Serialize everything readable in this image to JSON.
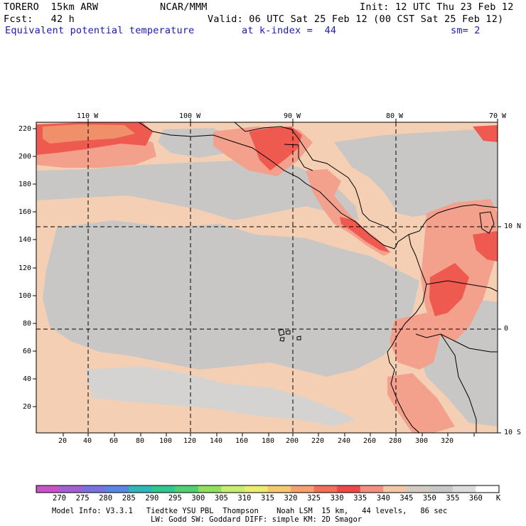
{
  "header": {
    "model": "TORERO  15km ARW",
    "center": "NCAR/MMM",
    "init": "Init: 12 UTC Thu 23 Feb 12",
    "fcst": "Fcst:   42 h",
    "valid": "Valid: 06 UTC Sat 25 Feb 12 (00 CST Sat 25 Feb 12)",
    "field": "Equivalent potential temperature",
    "level": "at k-index =  44",
    "smooth": "sm= 2"
  },
  "axes": {
    "top_labels": [
      "110 W",
      "100 W",
      "90 W",
      "80 W",
      "70 W"
    ],
    "left_labels": [
      "220",
      "200",
      "180",
      "160",
      "140",
      "120",
      "100",
      "80",
      "60",
      "40",
      "20"
    ],
    "bottom_labels": [
      "20",
      "40",
      "60",
      "80",
      "100",
      "120",
      "140",
      "160",
      "180",
      "200",
      "220",
      "240",
      "260",
      "280",
      "300",
      "320"
    ],
    "right_labels": [
      "10 N",
      "0",
      "10 S"
    ]
  },
  "colorbar": {
    "levels": [
      "270",
      "275",
      "280",
      "285",
      "290",
      "295",
      "300",
      "305",
      "310",
      "315",
      "320",
      "325",
      "330",
      "335",
      "340",
      "345",
      "350",
      "355",
      "360"
    ],
    "unit": "K",
    "colors": [
      "#c853c8",
      "#a060d0",
      "#7a72e0",
      "#5a86e6",
      "#30b8b8",
      "#30c890",
      "#50d070",
      "#90e060",
      "#c8ec70",
      "#ecec70",
      "#f6c870",
      "#f5a070",
      "#f27058",
      "#ee4848",
      "#f49080",
      "#f4c6a8",
      "#d4cbc3",
      "#c8c8c8",
      "#dcdcdc",
      "#ffffff"
    ]
  },
  "map_colors": {
    "base": "#f4cfb3",
    "gray": "#c9c7c5",
    "gray_light": "#d5d3d1",
    "salmon": "#f3a08c",
    "red": "#ef5a50",
    "orange": "#f0906a"
  },
  "footer": {
    "line1": "Model Info: V3.3.1   Tiedtke YSU PBL  Thompson    Noah LSM  15 km,   44 levels,   86 sec",
    "line2": "LW: Godd SW: Goddard DIFF: simple KM: 2D Smagor"
  }
}
